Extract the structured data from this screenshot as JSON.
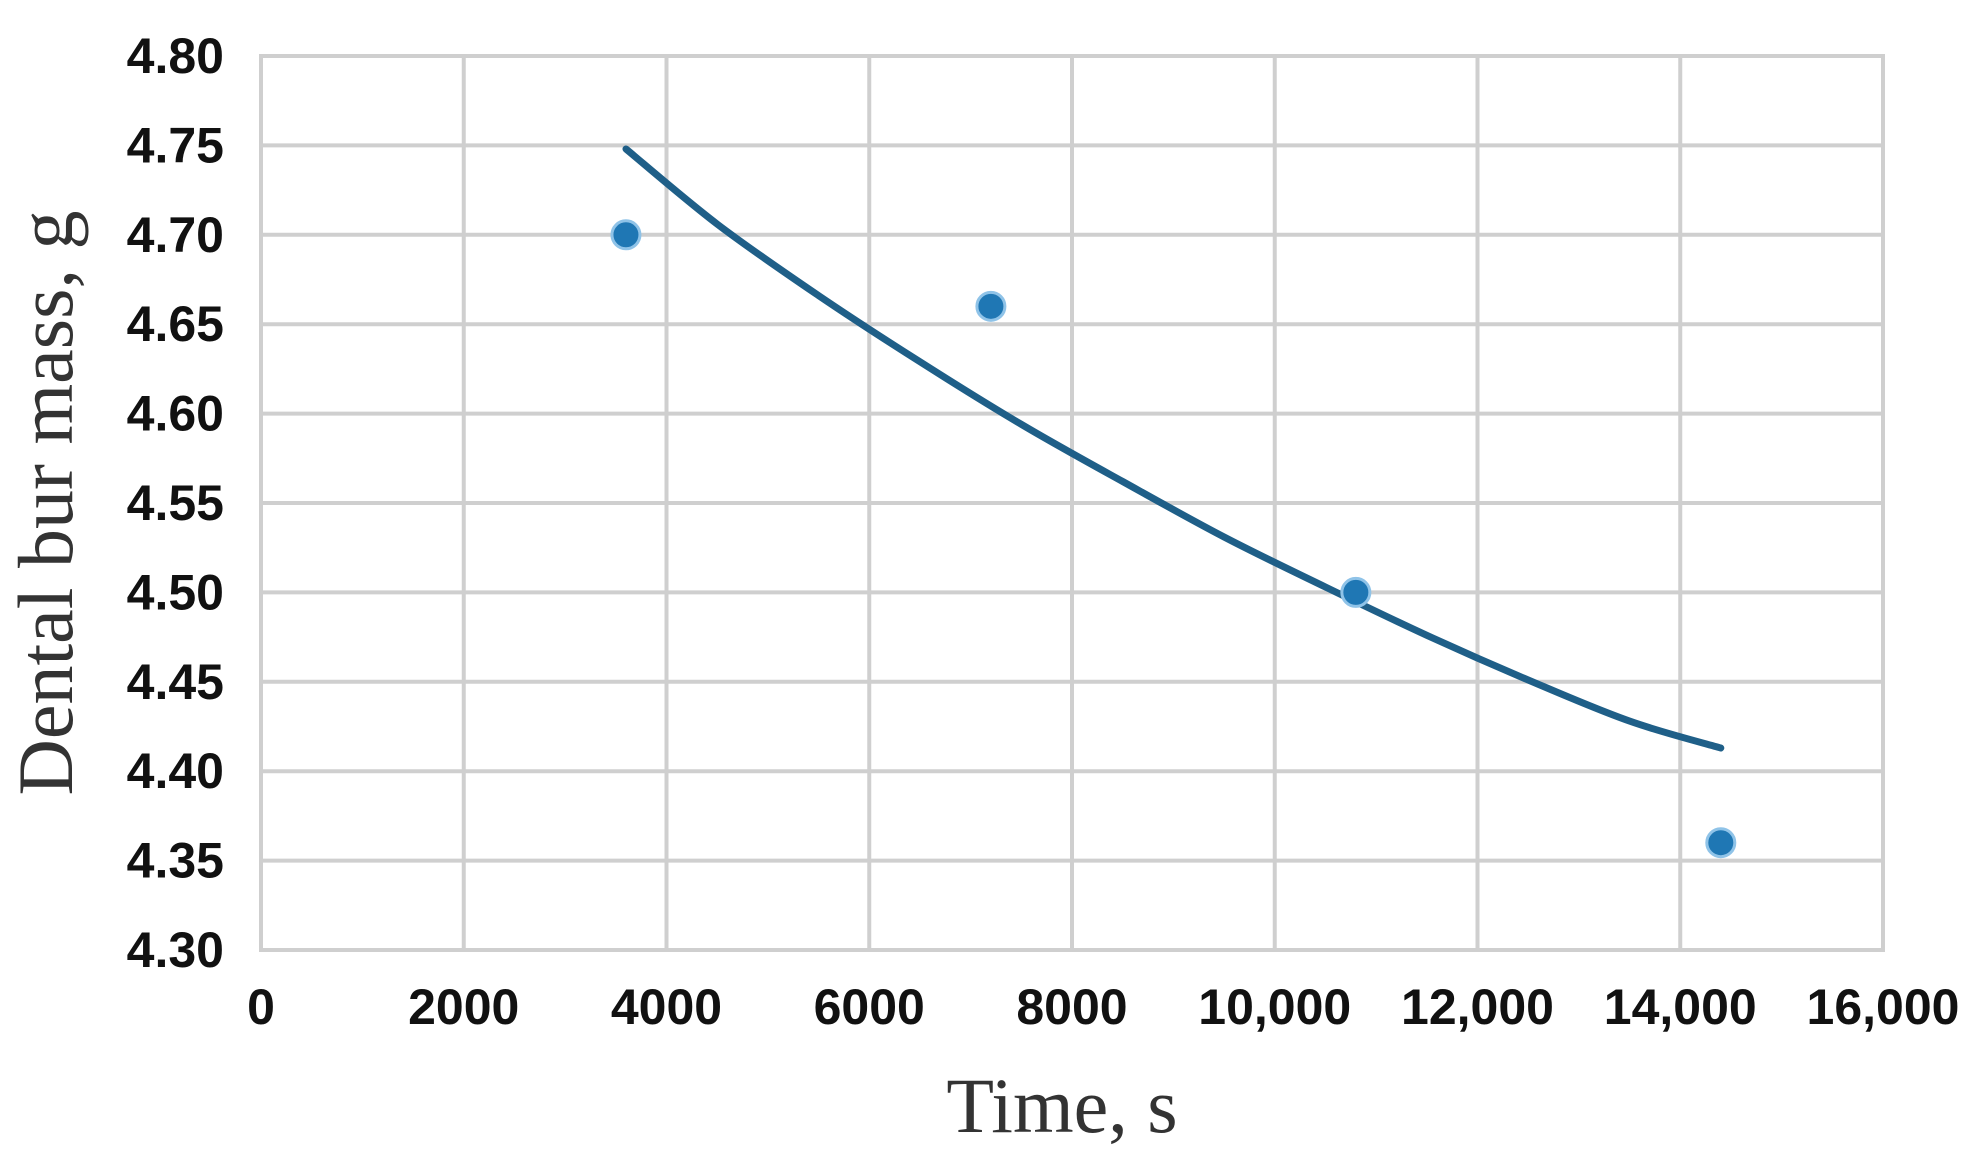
{
  "chart_data": {
    "type": "scatter",
    "xlabel": "Time, s",
    "ylabel": "Dental bur mass, g",
    "xlim": [
      0,
      16000
    ],
    "ylim": [
      4.3,
      4.8
    ],
    "x_ticks": [
      0,
      2000,
      4000,
      6000,
      8000,
      10000,
      12000,
      14000,
      16000
    ],
    "x_tick_labels": [
      "0",
      "2000",
      "4000",
      "6000",
      "8000",
      "10,000",
      "12,000",
      "14,000",
      "16,000"
    ],
    "y_ticks": [
      4.3,
      4.35,
      4.4,
      4.45,
      4.5,
      4.55,
      4.6,
      4.65,
      4.7,
      4.75,
      4.8
    ],
    "y_tick_labels": [
      "4.30",
      "4.35",
      "4.40",
      "4.45",
      "4.50",
      "4.55",
      "4.60",
      "4.65",
      "4.70",
      "4.75",
      "4.80"
    ],
    "grid": true,
    "legend": "none",
    "series": [
      {
        "type": "scatter",
        "x": [
          3600,
          7200,
          10800,
          14400
        ],
        "y": [
          4.7,
          4.66,
          4.5,
          4.36
        ],
        "color": "#1f77b4"
      },
      {
        "type": "line",
        "x": [
          3600,
          4500,
          5500,
          6500,
          7500,
          8500,
          9500,
          10500,
          11500,
          12500,
          13500,
          14400
        ],
        "y": [
          4.748,
          4.706,
          4.666,
          4.629,
          4.594,
          4.562,
          4.531,
          4.503,
          4.476,
          4.451,
          4.428,
          4.413
        ],
        "color": "#1f5f88"
      }
    ]
  }
}
